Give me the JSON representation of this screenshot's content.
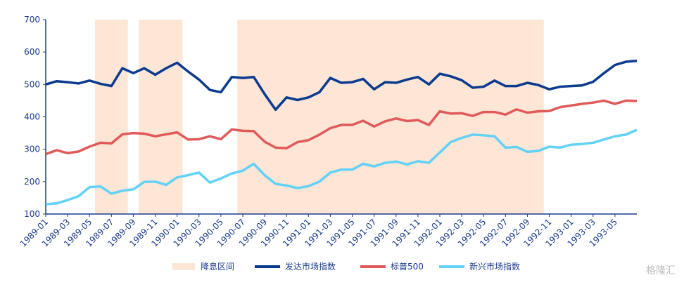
{
  "chart_data": {
    "type": "line",
    "x": [
      "1989-01",
      "1989-02",
      "1989-03",
      "1989-04",
      "1989-05",
      "1989-06",
      "1989-07",
      "1989-08",
      "1989-09",
      "1989-10",
      "1989-11",
      "1989-12",
      "1990-01",
      "1990-02",
      "1990-03",
      "1990-04",
      "1990-05",
      "1990-06",
      "1990-07",
      "1990-08",
      "1990-09",
      "1990-10",
      "1990-11",
      "1990-12",
      "1991-01",
      "1991-02",
      "1991-03",
      "1991-04",
      "1991-05",
      "1991-06",
      "1991-07",
      "1991-08",
      "1991-09",
      "1991-10",
      "1991-11",
      "1991-12",
      "1992-01",
      "1992-02",
      "1992-03",
      "1992-04",
      "1992-05",
      "1992-06",
      "1992-07",
      "1992-08",
      "1992-09",
      "1992-10",
      "1992-11",
      "1992-12",
      "1993-01",
      "1993-02",
      "1993-03",
      "1993-04",
      "1993-05",
      "1993-06",
      "1993-07"
    ],
    "xticks": [
      "1989-01",
      "1989-03",
      "1989-05",
      "1989-07",
      "1989-09",
      "1989-11",
      "1990-01",
      "1990-03",
      "1990-05",
      "1990-07",
      "1990-09",
      "1990-11",
      "1991-01",
      "1991-03",
      "1991-05",
      "1991-07",
      "1991-09",
      "1991-11",
      "1992-01",
      "1992-03",
      "1992-05",
      "1992-07",
      "1992-09",
      "1992-11",
      "1993-01",
      "1993-03",
      "1993-05"
    ],
    "ylim": [
      100,
      700
    ],
    "yticks": [
      100,
      200,
      300,
      400,
      500,
      600,
      700
    ],
    "shaded_regions": {
      "name": "降息区间",
      "color": "#fde6d6",
      "ranges": [
        {
          "start": "1989-06",
          "end": "1989-08"
        },
        {
          "start": "1989-10",
          "end": "1990-01"
        },
        {
          "start": "1990-07",
          "end": "1992-10"
        }
      ]
    },
    "series": [
      {
        "name": "发达市场指数",
        "color": "#0b3a8f",
        "values": [
          500,
          510,
          507,
          503,
          512,
          502,
          495,
          550,
          535,
          550,
          530,
          550,
          567,
          540,
          515,
          483,
          476,
          523,
          520,
          523,
          470,
          422,
          460,
          452,
          460,
          476,
          520,
          505,
          507,
          517,
          485,
          507,
          505,
          515,
          523,
          500,
          533,
          525,
          513,
          490,
          493,
          512,
          495,
          495,
          505,
          498,
          485,
          493,
          495,
          497,
          508,
          535,
          560,
          570,
          573
        ]
      },
      {
        "name": "标普500",
        "color": "#e05a5a",
        "values": [
          285,
          297,
          288,
          293,
          308,
          320,
          318,
          346,
          350,
          348,
          340,
          346,
          352,
          330,
          331,
          340,
          331,
          361,
          357,
          356,
          323,
          305,
          303,
          322,
          328,
          345,
          365,
          375,
          375,
          388,
          370,
          386,
          395,
          387,
          390,
          375,
          417,
          410,
          411,
          403,
          415,
          415,
          407,
          423,
          413,
          417,
          418,
          430,
          435,
          440,
          444,
          450,
          440,
          450,
          449
        ]
      },
      {
        "name": "新兴市场指数",
        "color": "#62d2f7",
        "values": [
          130,
          133,
          143,
          155,
          183,
          185,
          163,
          172,
          176,
          199,
          200,
          190,
          213,
          220,
          228,
          197,
          210,
          225,
          234,
          255,
          220,
          193,
          188,
          180,
          186,
          200,
          228,
          237,
          237,
          255,
          247,
          258,
          262,
          253,
          263,
          258,
          290,
          322,
          335,
          345,
          343,
          340,
          305,
          307,
          292,
          295,
          308,
          305,
          314,
          316,
          320,
          330,
          340,
          345,
          360
        ]
      }
    ],
    "watermark": "格隆汇"
  }
}
